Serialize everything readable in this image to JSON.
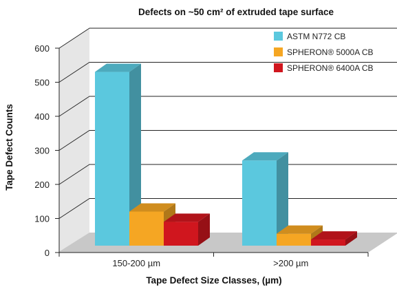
{
  "chart_data": {
    "type": "bar",
    "title": "Defects on ~50 cm² of extruded tape surface",
    "xlabel": "Tape Defect Size Classes, (µm)",
    "ylabel": "Tape Defect Counts",
    "categories": [
      "150-200 µm",
      ">200 µm"
    ],
    "ylim": [
      0,
      600
    ],
    "yticks": [
      "0",
      "100",
      "200",
      "300",
      "400",
      "500",
      "600"
    ],
    "grid": true,
    "legend_position": "top-right",
    "series": [
      {
        "name": "ASTM N772 CB",
        "values": [
          510,
          250
        ],
        "color": "#5BC8DE"
      },
      {
        "name": "SPHERON® 5000A CB",
        "values": [
          100,
          35
        ],
        "color": "#F5A623"
      },
      {
        "name": "SPHERON® 6400A CB",
        "values": [
          70,
          18
        ],
        "color": "#D0161E"
      }
    ]
  }
}
